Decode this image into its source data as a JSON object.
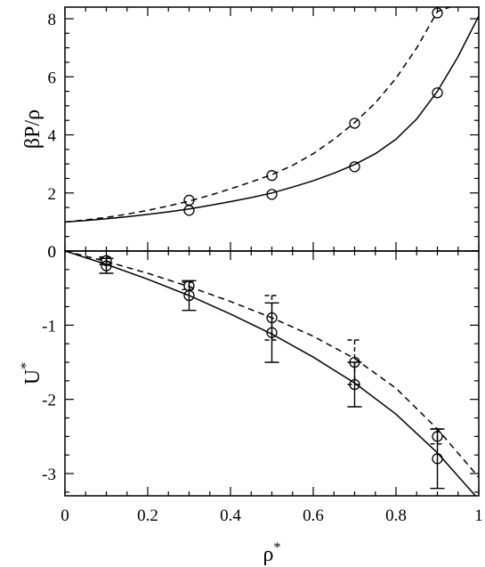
{
  "chart_data": [
    {
      "type": "line",
      "ylabel": "βP/ρ",
      "xlim": [
        0,
        1
      ],
      "ylim": [
        0,
        8.4
      ],
      "yticks": [
        "0",
        "2",
        "4",
        "6",
        "8"
      ],
      "grid": false,
      "series": [
        {
          "style": "dashed",
          "curve_x": [
            0,
            0.05,
            0.1,
            0.15,
            0.2,
            0.25,
            0.3,
            0.35,
            0.4,
            0.45,
            0.5,
            0.55,
            0.6,
            0.65,
            0.7,
            0.75,
            0.8,
            0.85,
            0.9,
            0.93
          ],
          "curve_y": [
            1.0,
            1.07,
            1.16,
            1.27,
            1.4,
            1.55,
            1.72,
            1.92,
            2.14,
            2.38,
            2.63,
            2.95,
            3.35,
            3.85,
            4.42,
            5.1,
            5.95,
            7.0,
            8.25,
            8.4
          ],
          "points_x": [
            0.3,
            0.5,
            0.7,
            0.9
          ],
          "points_y": [
            1.75,
            2.6,
            4.4,
            8.2
          ]
        },
        {
          "style": "solid",
          "curve_x": [
            0,
            0.05,
            0.1,
            0.15,
            0.2,
            0.25,
            0.3,
            0.35,
            0.4,
            0.45,
            0.5,
            0.55,
            0.6,
            0.65,
            0.7,
            0.75,
            0.8,
            0.85,
            0.9,
            0.95,
            1.0
          ],
          "curve_y": [
            1.0,
            1.05,
            1.11,
            1.18,
            1.26,
            1.35,
            1.45,
            1.57,
            1.7,
            1.84,
            2.0,
            2.2,
            2.42,
            2.68,
            2.98,
            3.35,
            3.85,
            4.55,
            5.5,
            6.7,
            8.1
          ],
          "points_x": [
            0.3,
            0.5,
            0.7,
            0.9
          ],
          "points_y": [
            1.4,
            1.95,
            2.9,
            5.45
          ]
        }
      ]
    },
    {
      "type": "line",
      "xlabel": "ρ",
      "xlabel_sup": "*",
      "ylabel": "U",
      "ylabel_sup": "*",
      "xlim": [
        0,
        1
      ],
      "ylim": [
        -3.3,
        0
      ],
      "xticks": [
        "0",
        "0.2",
        "0.4",
        "0.6",
        "0.8",
        "1"
      ],
      "yticks": [
        "0",
        "-1",
        "-2",
        "-3"
      ],
      "grid": false,
      "series": [
        {
          "style": "dashed",
          "curve_x": [
            0,
            0.1,
            0.2,
            0.3,
            0.4,
            0.5,
            0.6,
            0.7,
            0.8,
            0.9,
            1.0
          ],
          "curve_y": [
            0,
            -0.14,
            -0.3,
            -0.48,
            -0.68,
            -0.9,
            -1.15,
            -1.45,
            -1.85,
            -2.4,
            -3.05
          ],
          "points_x": [
            0.1,
            0.3,
            0.5,
            0.7,
            0.9
          ],
          "points_y": [
            -0.13,
            -0.47,
            -0.9,
            -1.5,
            -2.5
          ],
          "err": [
            0.05,
            0.05,
            0.3,
            0.3,
            0.1
          ]
        },
        {
          "style": "solid",
          "curve_x": [
            0,
            0.1,
            0.2,
            0.3,
            0.4,
            0.5,
            0.6,
            0.7,
            0.8,
            0.9,
            1.0
          ],
          "curve_y": [
            0,
            -0.18,
            -0.38,
            -0.6,
            -0.85,
            -1.12,
            -1.43,
            -1.78,
            -2.2,
            -2.72,
            -3.35
          ],
          "points_x": [
            0.1,
            0.3,
            0.5,
            0.7,
            0.9
          ],
          "points_y": [
            -0.2,
            -0.6,
            -1.1,
            -1.8,
            -2.8
          ],
          "err": [
            0.1,
            0.2,
            0.4,
            0.3,
            0.4
          ]
        }
      ]
    }
  ]
}
